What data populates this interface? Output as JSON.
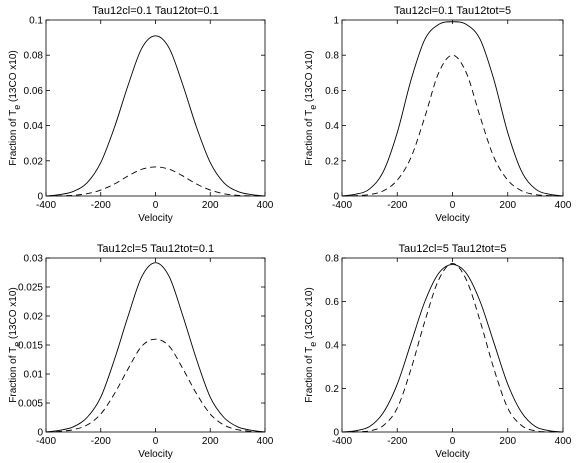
{
  "chart_data": [
    {
      "type": "line",
      "title": "Tau12cl=0.1 Tau12tot=0.1",
      "xlabel": "Velocity",
      "ylabel": "Fraction of T",
      "ylabel_sub": "e",
      "ylabel_tail": " (13CO x10)",
      "xlim": [
        -400,
        400
      ],
      "ylim": [
        0,
        0.1
      ],
      "xticks": [
        "-400",
        "-200",
        "0",
        "200",
        "400"
      ],
      "yticks": [
        "0",
        "0.02",
        "0.04",
        "0.06",
        "0.08",
        "0.1"
      ],
      "yticks_values": [
        0,
        0.02,
        0.04,
        0.06,
        0.08,
        0.1
      ],
      "series": [
        {
          "style": "solid",
          "x": [
            -400,
            -350,
            -300,
            -250,
            -200,
            -150,
            -100,
            -50,
            0,
            50,
            100,
            150,
            200,
            250,
            300,
            350,
            400
          ],
          "y": [
            0,
            0.0008,
            0.0026,
            0.0075,
            0.019,
            0.039,
            0.063,
            0.084,
            0.091,
            0.084,
            0.063,
            0.039,
            0.019,
            0.0075,
            0.0026,
            0.0008,
            0
          ]
        },
        {
          "style": "dashed",
          "x": [
            -400,
            -350,
            -300,
            -250,
            -200,
            -150,
            -100,
            -50,
            0,
            50,
            100,
            150,
            200,
            250,
            300,
            350,
            400
          ],
          "y": [
            0,
            0.0001,
            0.0004,
            0.0013,
            0.0034,
            0.0068,
            0.0114,
            0.0152,
            0.0165,
            0.0152,
            0.0114,
            0.0068,
            0.0034,
            0.0013,
            0.0004,
            0.0001,
            0
          ]
        }
      ]
    },
    {
      "type": "line",
      "title": "Tau12cl=0.1 Tau12tot=5",
      "xlabel": "Velocity",
      "ylabel": "Fraction of T",
      "ylabel_sub": "e",
      "ylabel_tail": " (13CO x10)",
      "xlim": [
        -400,
        400
      ],
      "ylim": [
        0,
        1
      ],
      "xticks": [
        "-400",
        "-200",
        "0",
        "200",
        "400"
      ],
      "yticks": [
        "0",
        "0.2",
        "0.4",
        "0.6",
        "0.8",
        "1"
      ],
      "yticks_values": [
        0,
        0.2,
        0.4,
        0.6,
        0.8,
        1
      ],
      "series": [
        {
          "style": "solid",
          "x": [
            -400,
            -350,
            -300,
            -250,
            -200,
            -150,
            -100,
            -50,
            0,
            50,
            100,
            150,
            200,
            250,
            300,
            350,
            400
          ],
          "y": [
            0,
            0.01,
            0.04,
            0.14,
            0.36,
            0.66,
            0.89,
            0.975,
            0.99,
            0.975,
            0.89,
            0.66,
            0.36,
            0.14,
            0.04,
            0.01,
            0
          ]
        },
        {
          "style": "dashed",
          "x": [
            -400,
            -350,
            -300,
            -250,
            -200,
            -150,
            -100,
            -50,
            0,
            50,
            100,
            150,
            200,
            250,
            300,
            350,
            400
          ],
          "y": [
            0,
            0.002,
            0.008,
            0.03,
            0.09,
            0.22,
            0.45,
            0.7,
            0.8,
            0.7,
            0.45,
            0.22,
            0.09,
            0.03,
            0.008,
            0.002,
            0
          ]
        }
      ]
    },
    {
      "type": "line",
      "title": "Tau12cl=5 Tau12tot=0.1",
      "xlabel": "Velocity",
      "ylabel": "Fraction of T",
      "ylabel_sub": "e",
      "ylabel_tail": " (13CO x10)",
      "xlim": [
        -400,
        400
      ],
      "ylim": [
        0,
        0.03
      ],
      "xticks": [
        "-400",
        "-200",
        "0",
        "200",
        "400"
      ],
      "yticks": [
        "0",
        "0.005",
        "0.01",
        "0.015",
        "0.02",
        "0.025",
        "0.03"
      ],
      "yticks_values": [
        0,
        0.005,
        0.01,
        0.015,
        0.02,
        0.025,
        0.03
      ],
      "series": [
        {
          "style": "solid",
          "x": [
            -400,
            -350,
            -300,
            -250,
            -200,
            -150,
            -100,
            -50,
            0,
            50,
            100,
            150,
            200,
            250,
            300,
            350,
            400
          ],
          "y": [
            0,
            0.0003,
            0.0009,
            0.0025,
            0.006,
            0.0125,
            0.02,
            0.0268,
            0.0292,
            0.0268,
            0.02,
            0.0125,
            0.006,
            0.0025,
            0.0009,
            0.0003,
            0
          ]
        },
        {
          "style": "dashed",
          "x": [
            -400,
            -350,
            -300,
            -250,
            -200,
            -150,
            -100,
            -50,
            0,
            50,
            100,
            150,
            200,
            250,
            300,
            350,
            400
          ],
          "y": [
            0,
            0.0001,
            0.0004,
            0.0012,
            0.0031,
            0.0066,
            0.0109,
            0.0148,
            0.016,
            0.0148,
            0.0109,
            0.0066,
            0.0031,
            0.0012,
            0.0004,
            0.0001,
            0
          ]
        }
      ]
    },
    {
      "type": "line",
      "title": "Tau12cl=5 Tau12tot=5",
      "xlabel": "Velocity",
      "ylabel": "Fraction of T",
      "ylabel_sub": "e",
      "ylabel_tail": " (13CO x10)",
      "xlim": [
        -400,
        400
      ],
      "ylim": [
        0,
        0.8
      ],
      "xticks": [
        "-400",
        "-200",
        "0",
        "200",
        "400"
      ],
      "yticks": [
        "0",
        "0.2",
        "0.4",
        "0.6",
        "0.8"
      ],
      "yticks_values": [
        0,
        0.2,
        0.4,
        0.6,
        0.8
      ],
      "series": [
        {
          "style": "solid",
          "x": [
            -400,
            -350,
            -300,
            -250,
            -200,
            -150,
            -100,
            -50,
            0,
            50,
            100,
            150,
            200,
            250,
            300,
            350,
            400
          ],
          "y": [
            0,
            0.006,
            0.025,
            0.09,
            0.22,
            0.41,
            0.6,
            0.73,
            0.77,
            0.73,
            0.6,
            0.41,
            0.22,
            0.09,
            0.025,
            0.006,
            0
          ]
        },
        {
          "style": "dashed",
          "x": [
            -400,
            -350,
            -300,
            -250,
            -200,
            -150,
            -100,
            -50,
            0,
            50,
            100,
            150,
            200,
            250,
            300,
            350,
            400
          ],
          "y": [
            0,
            0.001,
            0.005,
            0.03,
            0.11,
            0.29,
            0.51,
            0.7,
            0.775,
            0.7,
            0.51,
            0.29,
            0.11,
            0.03,
            0.005,
            0.001,
            0
          ]
        }
      ]
    }
  ]
}
